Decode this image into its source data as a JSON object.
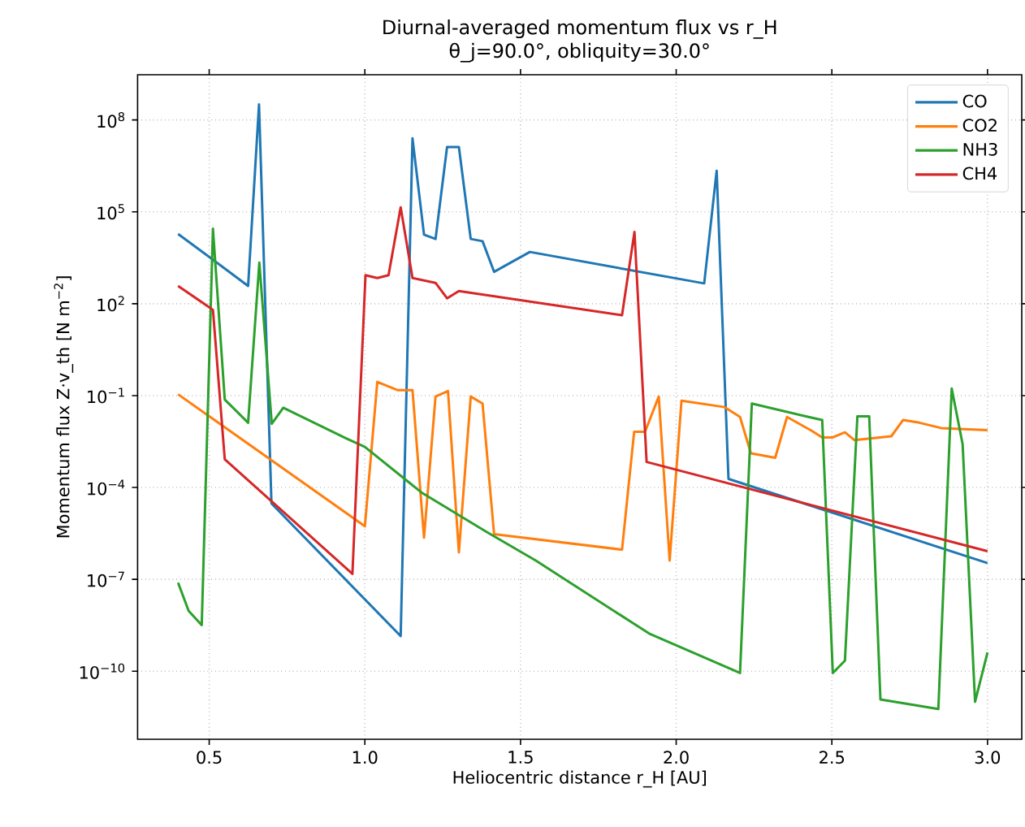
{
  "chart_data": {
    "type": "line",
    "title": "Diurnal-averaged momentum flux vs r_H",
    "subtitle": "θ_j=90.0°, obliquity=30.0°",
    "xlabel": "Heliocentric distance r_H [AU]",
    "ylabel": "Momentum flux  Z·v_th  [N m$^{−2}$]",
    "log": "y",
    "grid": true,
    "legend": "top right",
    "line_style": "solid",
    "xlim": [
      0.27,
      3.11
    ],
    "ylim": [
      6e-13,
      3000000000.0
    ],
    "xticks": [
      {
        "value": 0.5,
        "label": "0.5"
      },
      {
        "value": 1.0,
        "label": "1.0"
      },
      {
        "value": 1.5,
        "label": "1.5"
      },
      {
        "value": 2.0,
        "label": "2.0"
      },
      {
        "value": 2.5,
        "label": "2.5"
      },
      {
        "value": 3.0,
        "label": "3.0"
      }
    ],
    "yticks": [
      {
        "value": 1e-10,
        "label": "10$^{−10}$"
      },
      {
        "value": 1e-07,
        "label": "10$^{−7}$"
      },
      {
        "value": 0.0001,
        "label": "10$^{−4}$"
      },
      {
        "value": 0.1,
        "label": "10$^{−1}$"
      },
      {
        "value": 100.0,
        "label": "10$^{2}$"
      },
      {
        "value": 100000.0,
        "label": "10$^{5}$"
      },
      {
        "value": 100000000.0,
        "label": "10$^{8}$"
      }
    ],
    "series": [
      {
        "name": "CO",
        "color": "#1f77b4",
        "x": [
          0.4,
          0.625,
          0.66,
          0.7,
          1.115,
          1.153,
          1.19,
          1.227,
          1.264,
          1.302,
          1.34,
          1.378,
          1.415,
          1.53,
          2.09,
          2.13,
          2.168,
          3.0
        ],
        "values": [
          19000.0,
          380.0,
          320000000.0,
          3e-05,
          1.4e-09,
          25000000.0,
          18000.0,
          13000.0,
          13000000.0,
          13000000.0,
          13000.0,
          11000.0,
          1100.0,
          4900.0,
          460.0,
          2200000.0,
          0.00019,
          3.4e-07
        ]
      },
      {
        "name": "CO2",
        "color": "#ff7f0e",
        "x": [
          0.4,
          1.0,
          1.04,
          1.106,
          1.153,
          1.19,
          1.227,
          1.267,
          1.302,
          1.34,
          1.378,
          1.415,
          1.826,
          1.865,
          1.9,
          1.944,
          1.979,
          2.017,
          2.156,
          2.205,
          2.24,
          2.318,
          2.356,
          2.434,
          2.469,
          2.503,
          2.542,
          2.573,
          2.691,
          2.729,
          2.781,
          2.851,
          3.0
        ],
        "values": [
          0.11,
          5.4e-06,
          0.28,
          0.15,
          0.15,
          2.3e-06,
          0.093,
          0.14,
          7.6e-07,
          0.093,
          0.055,
          3e-06,
          9.3e-07,
          0.0066,
          0.0066,
          0.093,
          4.1e-07,
          0.068,
          0.042,
          0.02,
          0.0013,
          0.00093,
          0.02,
          0.0072,
          0.0043,
          0.0043,
          0.0063,
          0.0035,
          0.0047,
          0.016,
          0.013,
          0.0087,
          0.0074
        ]
      },
      {
        "name": "NH3",
        "color": "#2ca02c",
        "x": [
          0.4,
          0.434,
          0.476,
          0.512,
          0.55,
          0.625,
          0.661,
          0.701,
          0.738,
          0.94,
          1.0,
          1.184,
          1.392,
          1.549,
          1.913,
          2.205,
          2.243,
          2.425,
          2.469,
          2.503,
          2.542,
          2.582,
          2.62,
          2.656,
          2.842,
          2.885,
          2.92,
          2.96,
          3.0
        ],
        "values": [
          7.8e-08,
          9.3e-09,
          3.2e-09,
          28000.0,
          0.074,
          0.013,
          2200.0,
          0.012,
          0.04,
          0.004,
          0.0021,
          6.6e-05,
          3.5e-06,
          4.1e-07,
          1.7e-09,
          8.7e-11,
          0.055,
          0.02,
          0.016,
          8.7e-11,
          2.2e-10,
          0.021,
          0.021,
          1.2e-11,
          5.8e-12,
          0.17,
          0.0026,
          1e-11,
          4.1e-10
        ]
      },
      {
        "name": "CH4",
        "color": "#d62728",
        "x": [
          0.4,
          0.512,
          0.55,
          0.96,
          1.002,
          1.04,
          1.076,
          1.115,
          1.153,
          1.227,
          1.264,
          1.302,
          1.826,
          1.866,
          1.905,
          3.0
        ],
        "values": [
          380.0,
          63,
          0.00083,
          1.5e-07,
          850.0,
          690.0,
          850.0,
          140000.0,
          690.0,
          480.0,
          150.0,
          260.0,
          42,
          22000.0,
          0.00068,
          8.3e-07
        ]
      }
    ]
  }
}
